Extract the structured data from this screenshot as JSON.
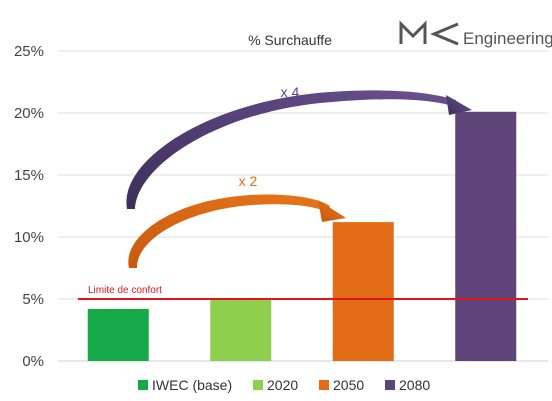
{
  "chart_data": {
    "type": "bar",
    "title": "% Surchauffe",
    "categories": [
      "IWEC (base)",
      "2020",
      "2050",
      "2080"
    ],
    "values": [
      4.2,
      5.0,
      11.2,
      20.1
    ],
    "colors": [
      "#17a84a",
      "#8fcf4f",
      "#e26d16",
      "#5e4478"
    ],
    "ylim": [
      0,
      25
    ],
    "y_ticks": [
      0,
      5,
      10,
      15,
      20,
      25
    ],
    "y_tick_labels": [
      "0%",
      "5%",
      "10%",
      "15%",
      "20%",
      "25%"
    ],
    "grid": true,
    "legend": {
      "position": "bottom",
      "entries": [
        "IWEC (base)",
        "2020",
        "2050",
        "2080"
      ]
    },
    "reference_line": {
      "label": "Limite de confort",
      "value": 5,
      "color": "#e0151b"
    },
    "annotations": [
      {
        "label": "x 2",
        "from": "IWEC (base)",
        "to": "2050",
        "color": "#e26d16"
      },
      {
        "label": "x 4",
        "from": "IWEC (base)",
        "to": "2080",
        "color": "#5e4478"
      }
    ]
  },
  "logo": {
    "mark": "MK",
    "text": "Engineering"
  }
}
